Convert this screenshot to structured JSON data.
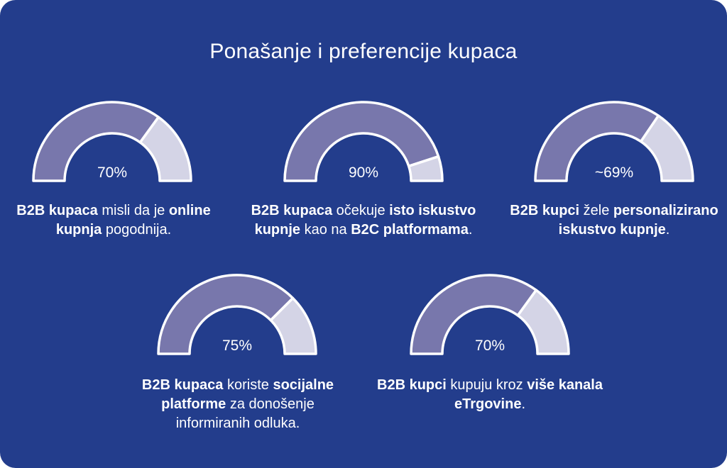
{
  "title": "Ponašanje i preferencije kupaca",
  "colors": {
    "background": "#233d8c",
    "filled": "#7877ac",
    "remaining": "#d4d4e6",
    "outline": "#ffffff"
  },
  "chart_data": {
    "type": "gauge",
    "title": "Ponašanje i preferencije kupaca",
    "unit": "%",
    "gauges": [
      {
        "value": 70,
        "label": "70%",
        "description": [
          {
            "text": "B2B kupaca",
            "bold": true
          },
          {
            "text": " misli da je ",
            "bold": false
          },
          {
            "text": "online kupnja",
            "bold": true
          },
          {
            "text": " pogodnija.",
            "bold": false
          }
        ]
      },
      {
        "value": 90,
        "label": "90%",
        "description": [
          {
            "text": "B2B kupaca",
            "bold": true
          },
          {
            "text": " očekuje ",
            "bold": false
          },
          {
            "text": "isto iskustvo kupnje",
            "bold": true
          },
          {
            "text": " kao na ",
            "bold": false
          },
          {
            "text": "B2C platformama",
            "bold": true
          },
          {
            "text": ".",
            "bold": false
          }
        ]
      },
      {
        "value": 69,
        "label": "~69%",
        "description": [
          {
            "text": "B2B kupci",
            "bold": true
          },
          {
            "text": " žele ",
            "bold": false
          },
          {
            "text": "personalizirano iskustvo kupnje",
            "bold": true
          },
          {
            "text": ".",
            "bold": false
          }
        ]
      },
      {
        "value": 75,
        "label": "75%",
        "description": [
          {
            "text": "B2B kupaca",
            "bold": true
          },
          {
            "text": " koriste ",
            "bold": false
          },
          {
            "text": "socijalne platforme",
            "bold": true
          },
          {
            "text": " za donošenje informiranih odluka.",
            "bold": false
          }
        ]
      },
      {
        "value": 70,
        "label": "70%",
        "description": [
          {
            "text": "B2B kupci",
            "bold": true
          },
          {
            "text": " kupuju kroz ",
            "bold": false
          },
          {
            "text": "više kanala eTrgovine",
            "bold": true
          },
          {
            "text": ".",
            "bold": false
          }
        ]
      }
    ]
  }
}
